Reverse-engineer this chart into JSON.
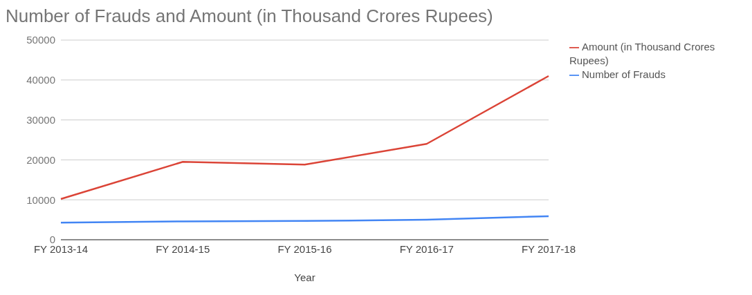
{
  "chart_data": {
    "type": "line",
    "title": "Number of Frauds and Amount (in Thousand Crores Rupees)",
    "xlabel": "Year",
    "categories": [
      "FY 2013-14",
      "FY 2014-15",
      "FY 2015-16",
      "FY 2016-17",
      "FY 2017-18"
    ],
    "series": [
      {
        "name": "Number of Frauds",
        "color": "#4285f4",
        "values": [
          4300,
          4600,
          4700,
          5000,
          5900
        ]
      },
      {
        "name": "Amount (in Thousand Crores Rupees)",
        "color": "#db4437",
        "values": [
          10200,
          19500,
          18800,
          24000,
          41000
        ]
      }
    ],
    "ylim": [
      0,
      50000
    ],
    "yticks": [
      0,
      10000,
      20000,
      30000,
      40000,
      50000
    ],
    "grid": "y",
    "legend": "top right",
    "marker": "none",
    "line_style": "solid"
  }
}
